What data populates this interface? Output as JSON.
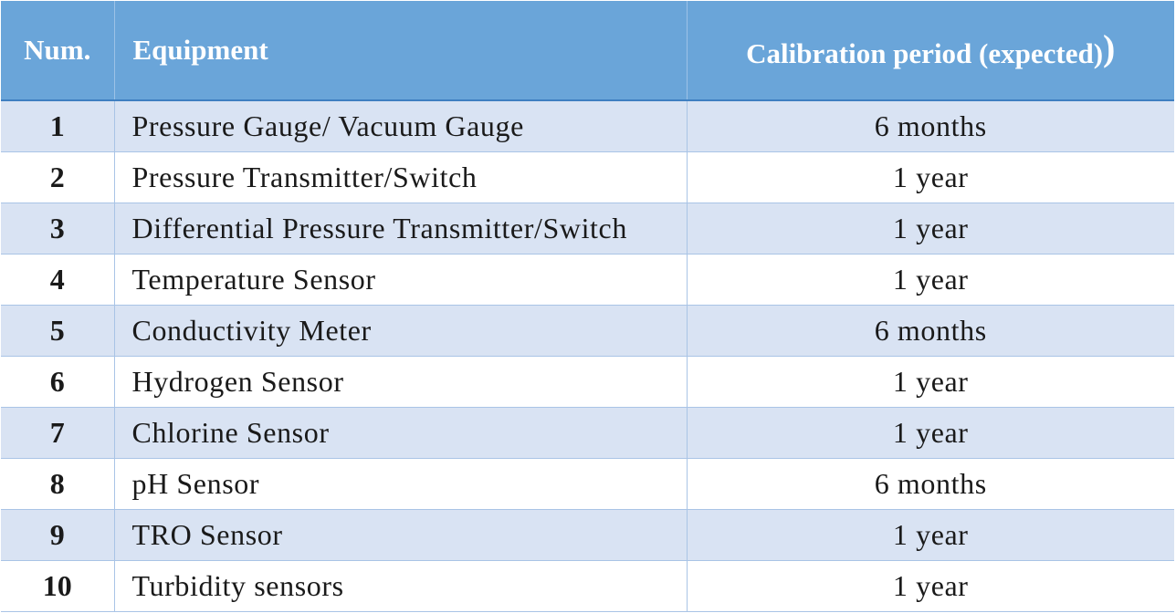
{
  "table": {
    "headers": {
      "num": "Num.",
      "equipment": "Equipment",
      "period": "Calibration period (expected)",
      "period_extra_paren": ")"
    },
    "rows": [
      {
        "num": "1",
        "equipment": "Pressure Gauge/ Vacuum Gauge",
        "period": "6 months"
      },
      {
        "num": "2",
        "equipment": "Pressure Transmitter/Switch",
        "period": "1 year"
      },
      {
        "num": "3",
        "equipment": "Differential Pressure Transmitter/Switch",
        "period": "1 year"
      },
      {
        "num": "4",
        "equipment": "Temperature Sensor",
        "period": "1 year"
      },
      {
        "num": "5",
        "equipment": "Conductivity Meter",
        "period": "6 months"
      },
      {
        "num": "6",
        "equipment": "Hydrogen Sensor",
        "period": "1 year"
      },
      {
        "num": "7",
        "equipment": "Chlorine Sensor",
        "period": "1 year"
      },
      {
        "num": "8",
        "equipment": "pH Sensor",
        "period": "6 months"
      },
      {
        "num": "9",
        "equipment": "TRO Sensor",
        "period": "1 year"
      },
      {
        "num": "10",
        "equipment": "Turbidity sensors",
        "period": "1 year"
      }
    ],
    "colors": {
      "header_bg": "#6aa5d9",
      "header_text": "#ffffff",
      "band_row_bg": "#d9e3f3",
      "plain_row_bg": "#ffffff",
      "grid_line": "#a9c4e6"
    }
  }
}
